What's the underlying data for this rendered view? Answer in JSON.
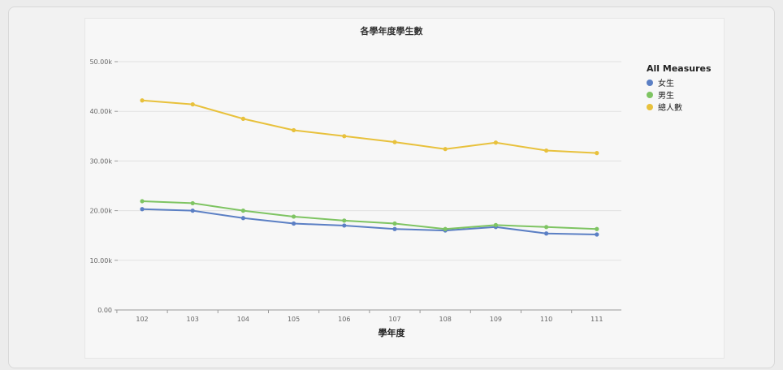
{
  "chart_data": {
    "type": "line",
    "title": "各學年度學生數",
    "xlabel": "學年度",
    "ylabel": "",
    "categories": [
      "102",
      "103",
      "104",
      "105",
      "106",
      "107",
      "108",
      "109",
      "110",
      "111"
    ],
    "ylim": [
      0,
      50000
    ],
    "yticks": [
      0,
      10000,
      20000,
      30000,
      40000,
      50000
    ],
    "ytick_labels": [
      "0.00",
      "10.00k",
      "20.00k",
      "30.00k",
      "40.00k",
      "50.00k"
    ],
    "grid": true,
    "legend_title": "All Measures",
    "legend_position": "right",
    "series": [
      {
        "name": "女生",
        "color": "#5b7fc4",
        "values": [
          20300,
          20000,
          18500,
          17400,
          17000,
          16300,
          16000,
          16700,
          15400,
          15200
        ]
      },
      {
        "name": "男生",
        "color": "#7ec462",
        "values": [
          21900,
          21500,
          20000,
          18800,
          18000,
          17400,
          16300,
          17100,
          16700,
          16300
        ]
      },
      {
        "name": "總人數",
        "color": "#e8c13c",
        "values": [
          42200,
          41400,
          38500,
          36200,
          35000,
          33800,
          32400,
          33700,
          32100,
          31600
        ]
      }
    ]
  }
}
